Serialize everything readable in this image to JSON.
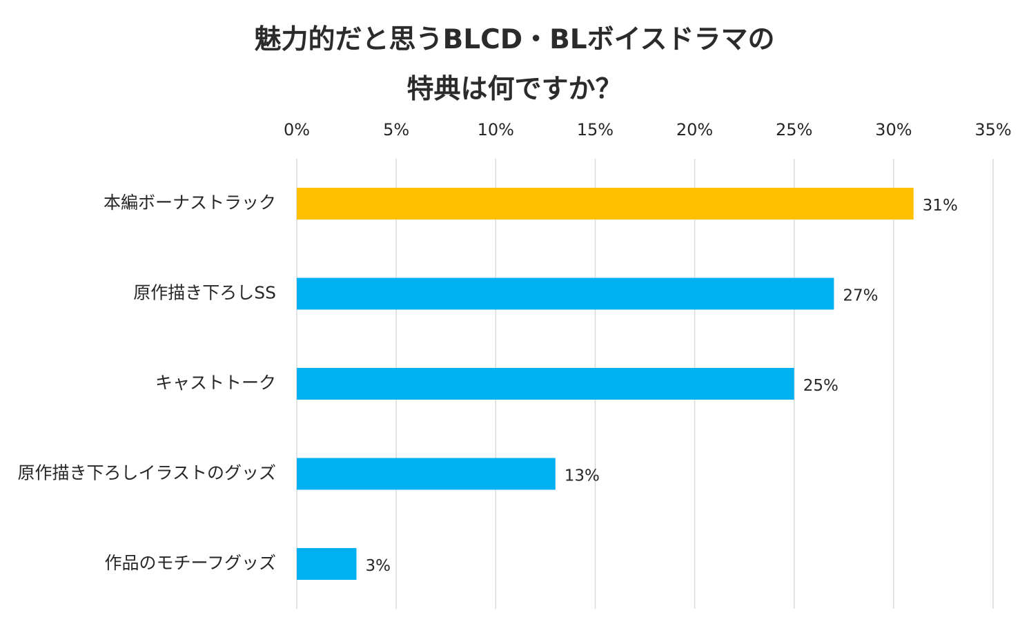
{
  "chart_data": {
    "type": "bar",
    "orientation": "horizontal",
    "title_lines": [
      "魅力的だと思うBLCD・BLボイスドラマの",
      "特典は何ですか？"
    ],
    "categories": [
      "本編ボーナストラック",
      "原作描き下ろしSS",
      "キャストトーク",
      "原作描き下ろしイラストのグッズ",
      "作品のモチーフグッズ"
    ],
    "values": [
      31,
      27,
      25,
      13,
      3
    ],
    "value_labels": [
      "31%",
      "27%",
      "25%",
      "13%",
      "3%"
    ],
    "x_ticks": [
      "0%",
      "5%",
      "10%",
      "15%",
      "20%",
      "25%",
      "30%",
      "35%"
    ],
    "xlim": [
      0,
      35
    ],
    "x_tick_step": 5,
    "axis_position": "top",
    "grid": true,
    "highlight_index": 0,
    "colors": {
      "highlight": "#FFC000",
      "default": "#00B0F0",
      "grid": "#D9D9D9"
    }
  }
}
